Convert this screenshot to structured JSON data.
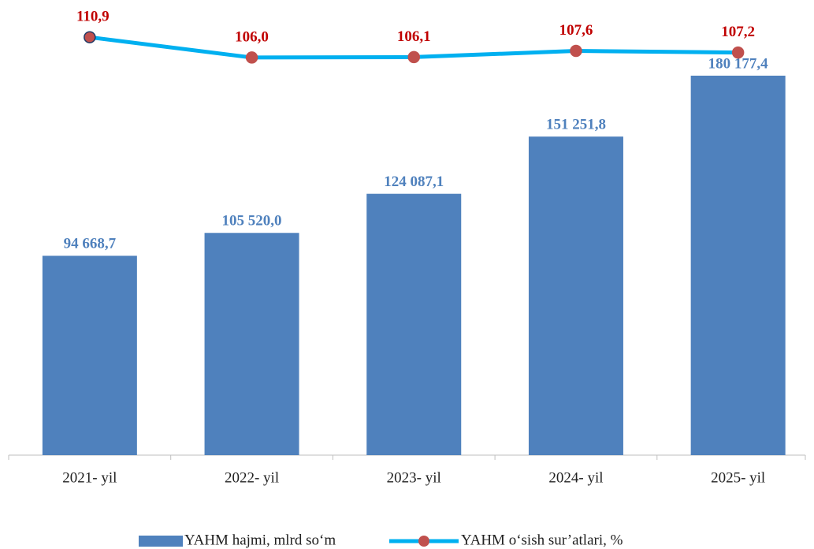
{
  "chart_data": {
    "type": "bar_line",
    "categories": [
      "2021- yil",
      "2022- yil",
      "2023- yil",
      "2024- yil",
      "2025- yil"
    ],
    "series": [
      {
        "name": "YAHM hajmi, mlrd so‘m",
        "type": "bar",
        "color": "#4f81bd",
        "values": [
          94668.7,
          105520.0,
          124087.1,
          151251.8,
          180177.4
        ],
        "value_labels": [
          "94 668,7",
          "105 520,0",
          "124 087,1",
          "151 251,8",
          "180 177,4"
        ]
      },
      {
        "name": "YAHM o‘sish sur’atlari, %",
        "type": "line",
        "axis": "y2",
        "color": "#00b0f0",
        "marker_color": "#c0504d",
        "values": [
          110.9,
          106.0,
          106.1,
          107.6,
          107.2
        ],
        "value_labels": [
          "110,9",
          "106,0",
          "106,1",
          "107,6",
          "107,2"
        ]
      }
    ],
    "ylim": [
      0,
      200000
    ],
    "y2lim": [
      10,
      111.7
    ],
    "grid": false,
    "legend": "bottom"
  }
}
